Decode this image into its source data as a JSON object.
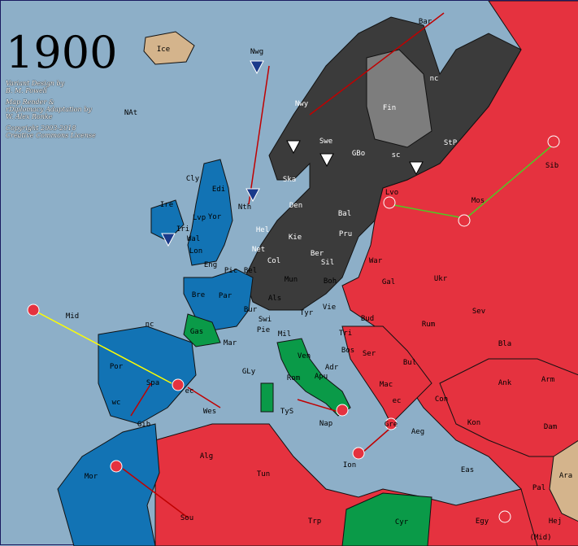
{
  "year": "1900",
  "credits": {
    "design": [
      "Variant Design by",
      "B. M. Powell"
    ],
    "render": [
      "Map Render &",
      "rDiplomacy Adaptation by",
      "W. Alex Ronke"
    ],
    "copyright": [
      "Copyright 2003-2018",
      "Creative Commons License"
    ]
  },
  "colors": {
    "sea": "#8dafc8",
    "turkey_red": "#e5323f",
    "germany_gray": "#3b3b3b",
    "britain_blue": "#1273b4",
    "italy_green": "#0a9a48",
    "neutral_tan": "#d4b48c",
    "sweden_gray": "#7d7d7d"
  },
  "labels": [
    "Ice",
    "Nwg",
    "Bar",
    "nc",
    "Fin",
    "NAt",
    "Nwy",
    "Swe",
    "GBo",
    "sc",
    "StP",
    "Sib",
    "Cly",
    "Edi",
    "Ska",
    "Den",
    "Bal",
    "Lvo",
    "Mos",
    "Ire",
    "Lvp",
    "Yor",
    "Nth",
    "Hel",
    "Kie",
    "Pru",
    "Iri",
    "Wal",
    "Lon",
    "Net",
    "Ber",
    "Sil",
    "War",
    "Eng",
    "Pic",
    "Bel",
    "Col",
    "Boh",
    "Gal",
    "Ukr",
    "Bre",
    "Par",
    "Mun",
    "Mid",
    "Bur",
    "Als",
    "Tyr",
    "Vie",
    "Bud",
    "Rum",
    "Sev",
    "nc",
    "Gas",
    "Swi",
    "Mil",
    "Pie",
    "Mar",
    "Tri",
    "Bla",
    "Por",
    "Spa",
    "GLy",
    "Ven",
    "Rom",
    "Adr",
    "Bos",
    "Ser",
    "Bul",
    "Mac",
    "Con",
    "Ank",
    "Arm",
    "wc",
    "ec",
    "Apu",
    "Gib",
    "Wes",
    "TyS",
    "Nap",
    "Gre",
    "Aeg",
    "Kon",
    "Dam",
    "Mor",
    "Alg",
    "Tun",
    "Ion",
    "Eas",
    "Ara",
    "Pal",
    "Sou",
    "Trp",
    "Cyr",
    "Egy",
    "Hej",
    "(Mid)",
    "ec"
  ]
}
